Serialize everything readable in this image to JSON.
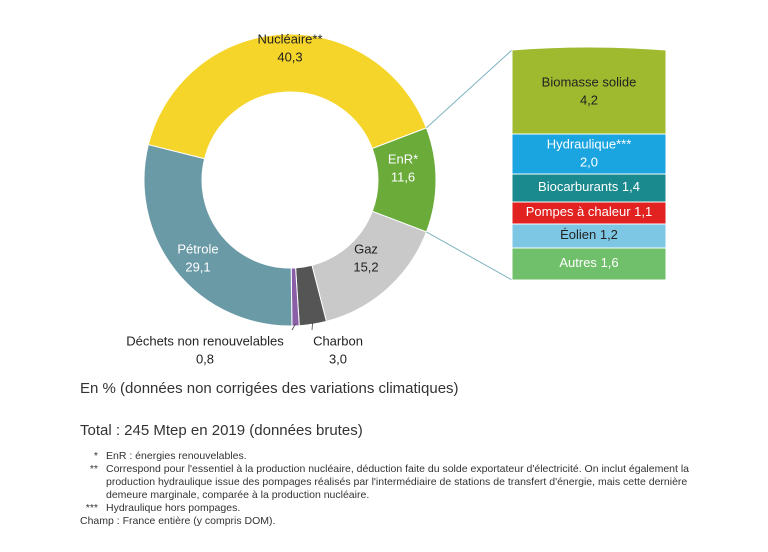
{
  "chart_data": {
    "type": "donut",
    "categories": [
      "Nucléaire**",
      "EnR*",
      "Gaz",
      "Charbon",
      "Déchets non renouvelables",
      "Pétrole"
    ],
    "values": [
      40.3,
      11.6,
      15.2,
      3.0,
      0.8,
      29.1
    ],
    "value_labels": [
      "40,3",
      "11,6",
      "15,2",
      "3,0",
      "0,8",
      "29,1"
    ],
    "colors": [
      "#f6d52a",
      "#6aab3a",
      "#c9c9c9",
      "#555555",
      "#8b5fa8",
      "#6b9aa7"
    ],
    "breakdown": {
      "categories": [
        "Biomasse solide",
        "Hydraulique***",
        "Biocarburants",
        "Pompes à chaleur",
        "Éolien",
        "Autres"
      ],
      "values": [
        4.2,
        2.0,
        1.4,
        1.1,
        1.2,
        1.6
      ],
      "value_labels": [
        "4,2",
        "2,0",
        "1,4",
        "1,1",
        "1,2",
        "1,6"
      ],
      "colors": [
        "#9fba2e",
        "#1aa4e0",
        "#1a8a8e",
        "#e12220",
        "#7ec7e4",
        "#70bf6a"
      ]
    },
    "note": "En % (données non corrigées des variations climatiques)",
    "total": "Total : 245 Mtep en 2019 (données brutes)",
    "footnotes": [
      {
        "marker": "*",
        "text": "EnR : énergies renouvelables."
      },
      {
        "marker": "**",
        "text": "Correspond pour l'essentiel à la production nucléaire, déduction faite du solde exportateur d'électricité. On inclut également la production hydraulique issue des pompages réalisés par l'intermédiaire de stations de transfert d'énergie, mais cette dernière demeure marginale, comparée à la production nucléaire."
      },
      {
        "marker": "***",
        "text": "Hydraulique hors pompages."
      }
    ],
    "scope": "Champ : France entière (y compris DOM)."
  }
}
